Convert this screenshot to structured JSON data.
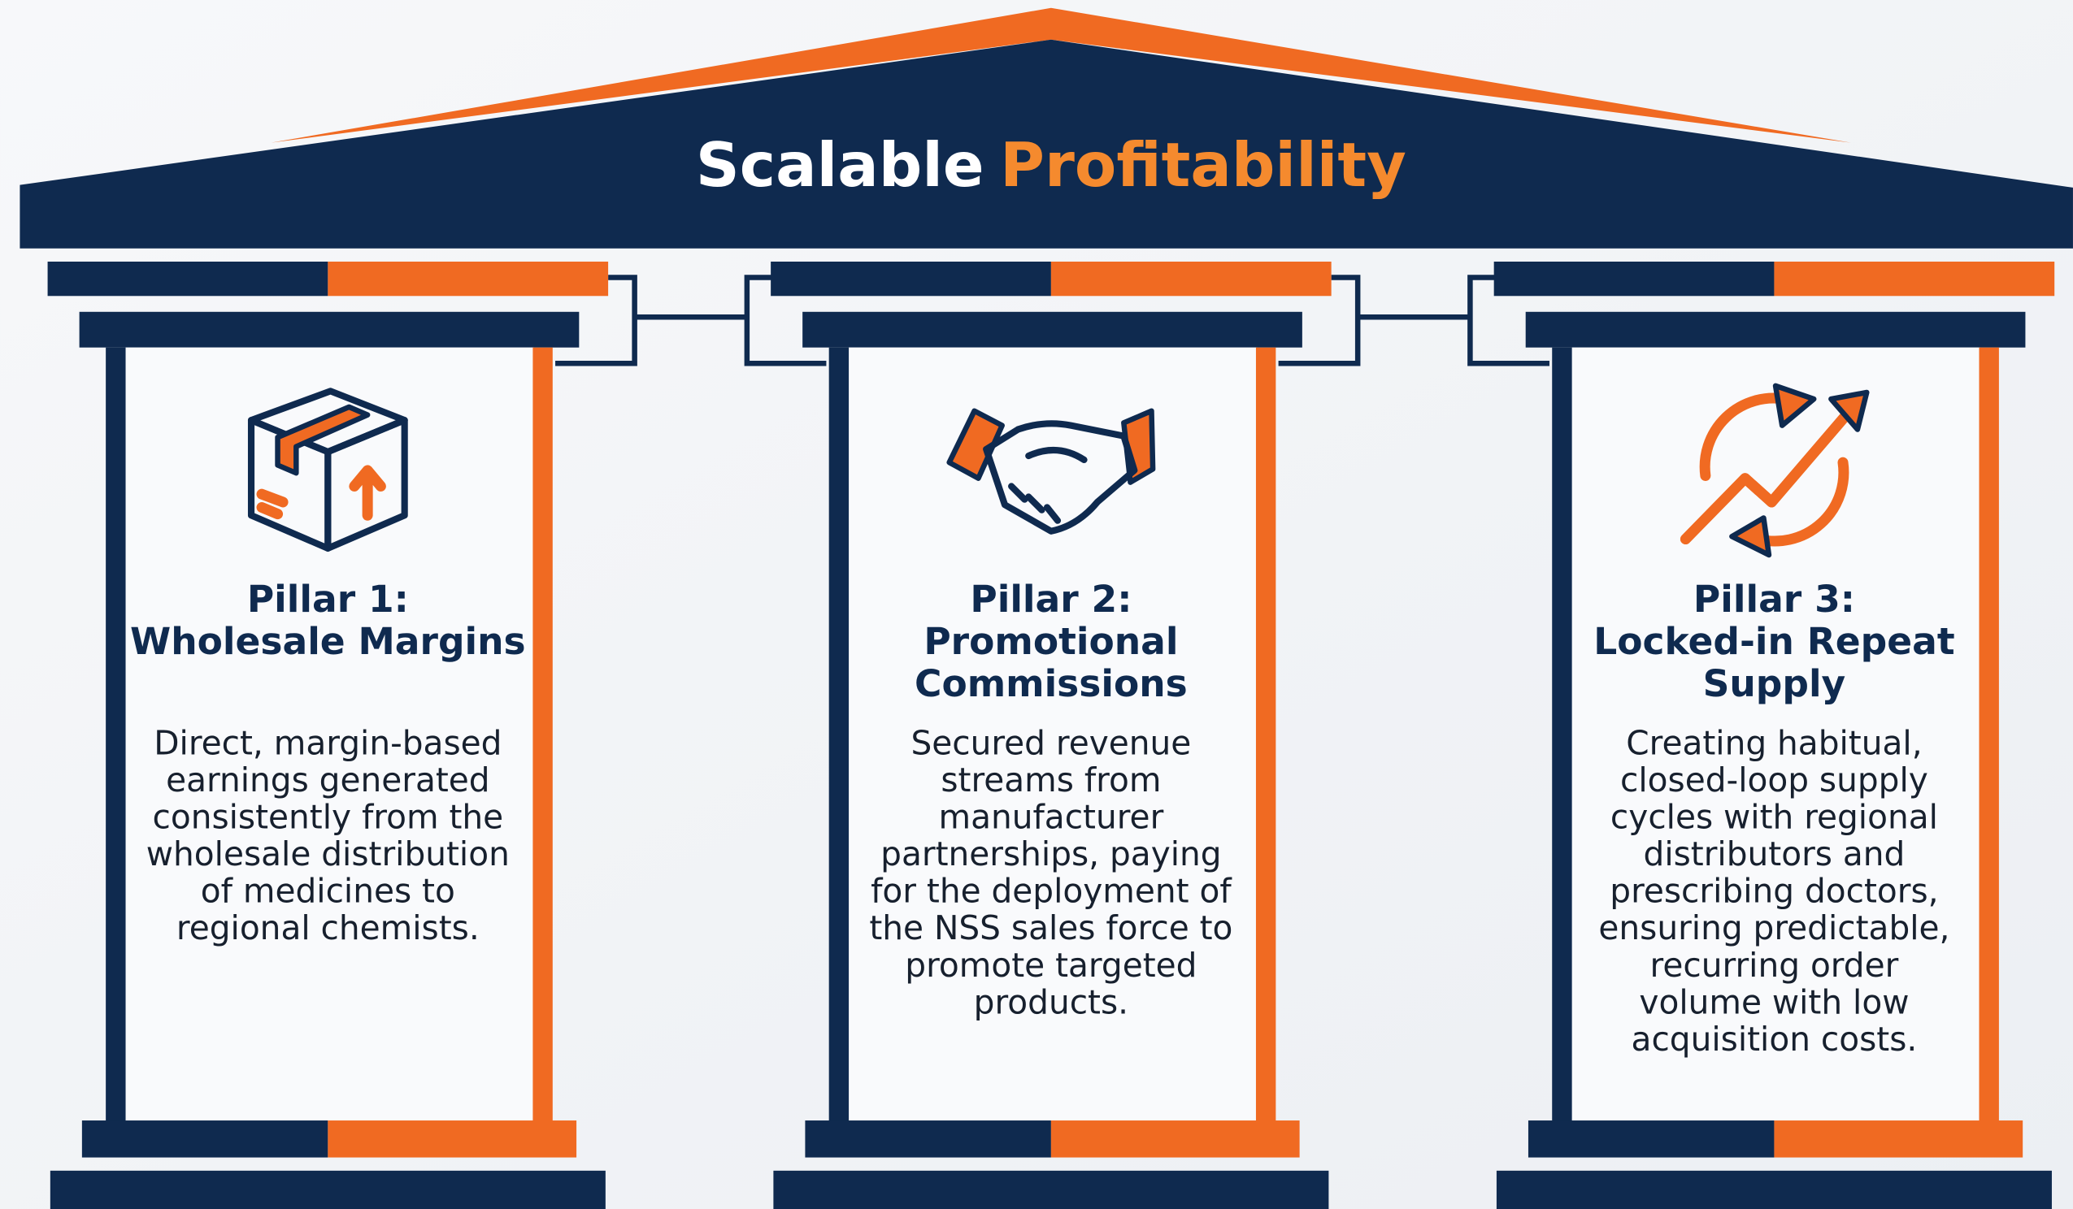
{
  "title": {
    "lead": "Scalable",
    "accent": "Profitability"
  },
  "pillars": [
    {
      "heading": [
        "Pillar 1:",
        "Wholesale Margins"
      ],
      "description": [
        "Direct, margin-based",
        "earnings generated",
        "consistently from the",
        "wholesale distribution",
        "of medicines to",
        "regional chemists."
      ]
    },
    {
      "heading": [
        "Pillar 2:",
        "Promotional",
        "Commissions"
      ],
      "description": [
        "Secured revenue",
        "streams from",
        "manufacturer",
        "partnerships, paying",
        "for the deployment of",
        "the NSS sales force to",
        "promote targeted",
        "products."
      ]
    },
    {
      "heading": [
        "Pillar 3:",
        "Locked-in Repeat",
        "Supply"
      ],
      "description": [
        "Creating habitual,",
        "closed-loop supply",
        "cycles with regional",
        "distributors and",
        "prescribing doctors,",
        "ensuring predictable,",
        "recurring order",
        "volume with low",
        "acquisition costs."
      ]
    }
  ]
}
